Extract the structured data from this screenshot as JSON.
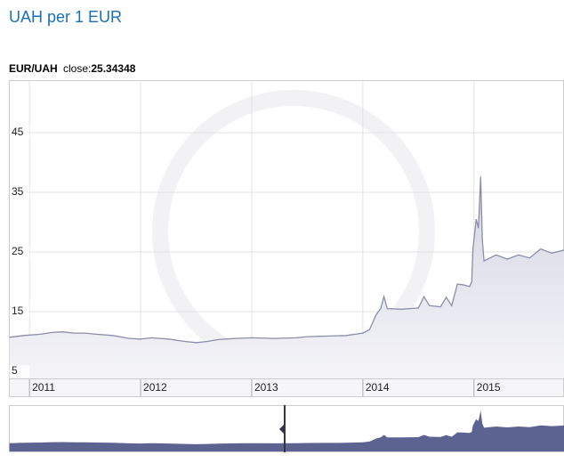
{
  "chart_data": {
    "type": "area",
    "title": "UAH per 1 EUR",
    "close_label": "close:",
    "close": 25.34348,
    "x": [
      2010.82,
      2010.95,
      2011.1,
      2011.2,
      2011.3,
      2011.4,
      2011.5,
      2011.6,
      2011.75,
      2011.9,
      2012.0,
      2012.1,
      2012.25,
      2012.4,
      2012.5,
      2012.6,
      2012.7,
      2012.85,
      2013.0,
      2013.2,
      2013.4,
      2013.5,
      2013.7,
      2013.85,
      2014.0,
      2014.06,
      2014.12,
      2014.16,
      2014.19,
      2014.22,
      2014.35,
      2014.5,
      2014.55,
      2014.6,
      2014.7,
      2014.75,
      2014.8,
      2014.85,
      2014.9,
      2014.96,
      2014.98,
      2014.99,
      2015.02,
      2015.04,
      2015.06,
      2015.075,
      2015.09,
      2015.2,
      2015.3,
      2015.4,
      2015.5,
      2015.6,
      2015.7,
      2015.81
    ],
    "series": [
      {
        "name": "EUR/UAH",
        "color": "#8a8ea8",
        "values": [
          10.7,
          11.0,
          11.2,
          11.5,
          11.6,
          11.4,
          11.4,
          11.2,
          11.0,
          10.5,
          10.4,
          10.6,
          10.4,
          10.0,
          9.8,
          10.0,
          10.3,
          10.5,
          10.6,
          10.5,
          10.6,
          10.8,
          10.9,
          11.0,
          11.4,
          12.0,
          14.5,
          15.5,
          17.5,
          15.5,
          15.4,
          15.6,
          17.5,
          16.0,
          15.8,
          17.4,
          16.0,
          19.6,
          19.5,
          19.2,
          20.0,
          25.5,
          30.5,
          29.0,
          37.6,
          27.0,
          23.5,
          24.5,
          23.8,
          24.5,
          24.0,
          25.5,
          24.8,
          25.3
        ]
      }
    ],
    "xlim": [
      2010.815,
      2015.81
    ],
    "xticks": [
      2011,
      2012,
      2013,
      2014,
      2015
    ],
    "ylim": [
      3.8,
      53.8
    ],
    "yticks": [
      5,
      15,
      25,
      35,
      45
    ],
    "grid": true
  }
}
